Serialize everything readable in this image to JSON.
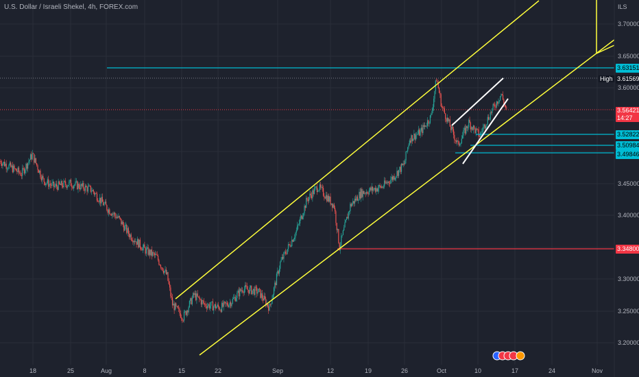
{
  "chart_title": "U.S. Dollar / Israeli Shekel, 4h, FOREX.com",
  "axis_currency": "ILS",
  "price_axis_ticks": [
    "3.70000",
    "3.65000",
    "3.60000",
    "3.45000",
    "3.40000",
    "3.30000",
    "3.25000",
    "3.20000"
  ],
  "time_axis_ticks": [
    "18",
    "25",
    "Aug",
    "8",
    "15",
    "22",
    "Sep",
    "12",
    "19",
    "26",
    "Oct",
    "10",
    "17",
    "24",
    "Nov"
  ],
  "price_labels": {
    "level_1": "3.63151",
    "high_label": "High",
    "high_value": "3.61569",
    "current_price": "3.56421",
    "countdown": "14:27",
    "level_2": "3.52822",
    "level_3": "3.50984",
    "level_4": "3.49846",
    "support_red": "3.34800"
  },
  "colors": {
    "background": "#1e222d",
    "bull": "#26a69a",
    "bear": "#ef5350",
    "channel": "#ffff3b",
    "cyan_level": "#00bcd4",
    "red_level": "#f23645",
    "wedge": "#ffffff"
  },
  "chart_data": {
    "type": "candlestick",
    "title": "U.S. Dollar / Israeli Shekel, 4h, FOREX.com",
    "ylim": [
      3.17,
      3.76
    ],
    "x_range": [
      "2022-07-12",
      "2022-11-03"
    ],
    "close_path": [
      [
        "2022-07-12",
        3.485
      ],
      [
        "2022-07-14",
        3.475
      ],
      [
        "2022-07-16",
        3.465
      ],
      [
        "2022-07-18",
        3.495
      ],
      [
        "2022-07-20",
        3.455
      ],
      [
        "2022-07-22",
        3.445
      ],
      [
        "2022-07-25",
        3.45
      ],
      [
        "2022-07-27",
        3.445
      ],
      [
        "2022-07-29",
        3.44
      ],
      [
        "2022-08-01",
        3.41
      ],
      [
        "2022-08-03",
        3.395
      ],
      [
        "2022-08-05",
        3.37
      ],
      [
        "2022-08-08",
        3.345
      ],
      [
        "2022-08-10",
        3.335
      ],
      [
        "2022-08-12",
        3.305
      ],
      [
        "2022-08-13",
        3.26
      ],
      [
        "2022-08-15",
        3.24
      ],
      [
        "2022-08-17",
        3.275
      ],
      [
        "2022-08-19",
        3.26
      ],
      [
        "2022-08-22",
        3.255
      ],
      [
        "2022-08-24",
        3.265
      ],
      [
        "2022-08-26",
        3.285
      ],
      [
        "2022-08-29",
        3.28
      ],
      [
        "2022-08-31",
        3.255
      ],
      [
        "2022-09-02",
        3.325
      ],
      [
        "2022-09-05",
        3.375
      ],
      [
        "2022-09-07",
        3.425
      ],
      [
        "2022-09-09",
        3.445
      ],
      [
        "2022-09-10",
        3.435
      ],
      [
        "2022-09-12",
        3.415
      ],
      [
        "2022-09-13",
        3.35
      ],
      [
        "2022-09-15",
        3.415
      ],
      [
        "2022-09-17",
        3.435
      ],
      [
        "2022-09-19",
        3.44
      ],
      [
        "2022-09-21",
        3.445
      ],
      [
        "2022-09-23",
        3.46
      ],
      [
        "2022-09-25",
        3.48
      ],
      [
        "2022-09-26",
        3.52
      ],
      [
        "2022-09-28",
        3.53
      ],
      [
        "2022-09-30",
        3.555
      ],
      [
        "2022-10-01",
        3.615
      ],
      [
        "2022-10-02",
        3.57
      ],
      [
        "2022-10-04",
        3.53
      ],
      [
        "2022-10-05",
        3.51
      ],
      [
        "2022-10-07",
        3.545
      ],
      [
        "2022-10-09",
        3.525
      ],
      [
        "2022-10-11",
        3.56
      ],
      [
        "2022-10-13",
        3.59
      ],
      [
        "2022-10-14",
        3.564
      ]
    ],
    "horizontal_levels": [
      {
        "price": 3.63151,
        "color": "cyan"
      },
      {
        "price": 3.52822,
        "color": "cyan"
      },
      {
        "price": 3.50984,
        "color": "cyan"
      },
      {
        "price": 3.49846,
        "color": "cyan"
      },
      {
        "price": 3.348,
        "color": "red"
      }
    ],
    "annotations": [
      "ascending channel",
      "rising wedge"
    ]
  }
}
